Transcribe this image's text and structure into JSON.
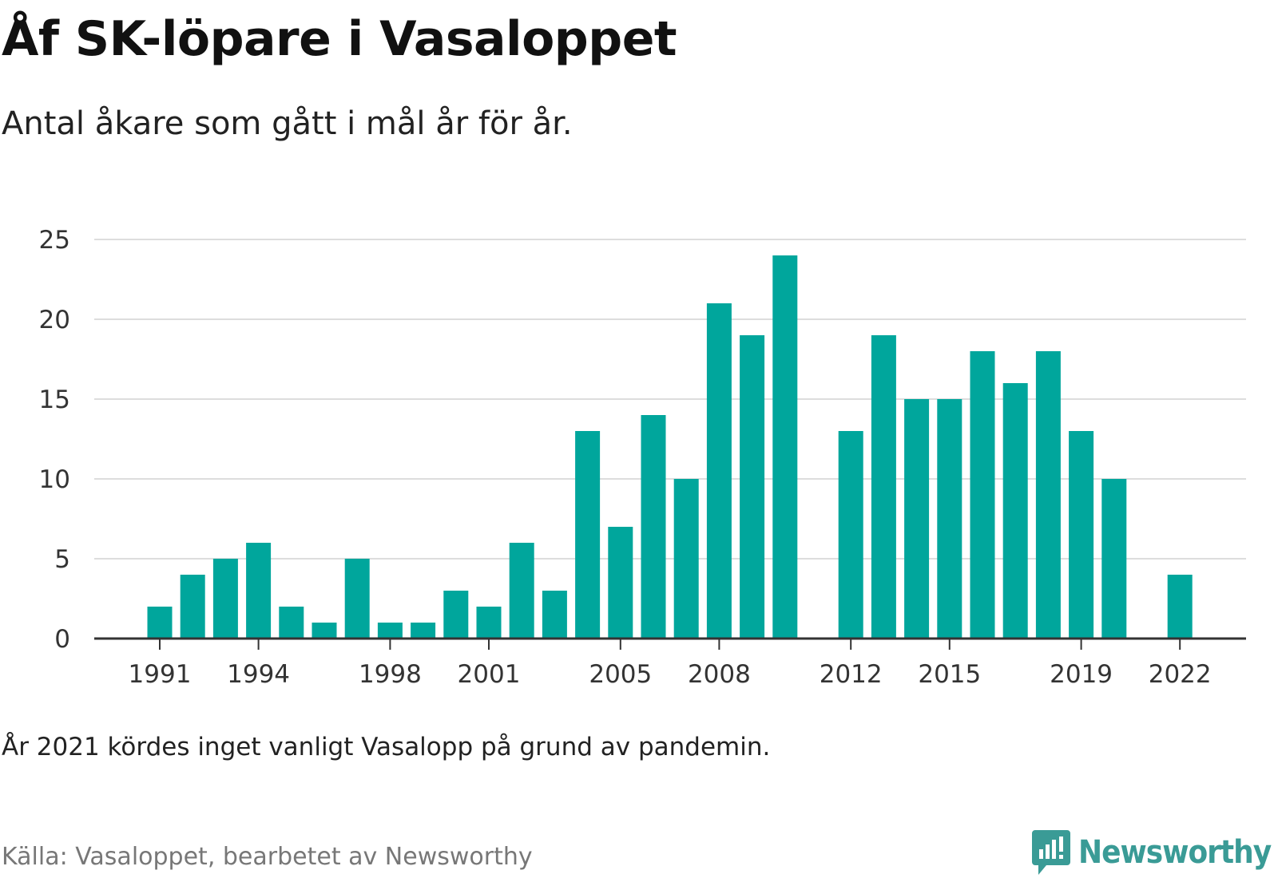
{
  "title": "Åf SK-löpare i Vasaloppet",
  "subtitle": "Antal åkare som gått i mål år för år.",
  "note": "År 2021 kördes inget vanligt Vasalopp på grund av pandemin.",
  "source": "Källa: Vasaloppet, bearbetet av Newsworthy",
  "logo_text": "Newsworthy",
  "colors": {
    "bar": "#00a69c",
    "grid": "#dddddd",
    "axis": "#333333",
    "logo": "#3a9b96"
  },
  "chart_data": {
    "type": "bar",
    "title": "Åf SK-löpare i Vasaloppet",
    "subtitle": "Antal åkare som gått i mål år för år.",
    "xlabel": "",
    "ylabel": "",
    "ylim": [
      0,
      25
    ],
    "yticks": [
      0,
      5,
      10,
      15,
      20,
      25
    ],
    "xtick_labels": [
      "1991",
      "1994",
      "1998",
      "2001",
      "2005",
      "2008",
      "2012",
      "2015",
      "2019",
      "2022"
    ],
    "categories": [
      1991,
      1992,
      1993,
      1994,
      1995,
      1996,
      1997,
      1998,
      1999,
      2000,
      2001,
      2002,
      2003,
      2004,
      2005,
      2006,
      2007,
      2008,
      2009,
      2010,
      2011,
      2012,
      2013,
      2014,
      2015,
      2016,
      2017,
      2018,
      2019,
      2020,
      2021,
      2022
    ],
    "values": [
      2,
      4,
      5,
      6,
      2,
      1,
      5,
      1,
      1,
      3,
      2,
      6,
      3,
      13,
      7,
      14,
      10,
      21,
      19,
      24,
      null,
      13,
      19,
      15,
      15,
      18,
      16,
      18,
      13,
      10,
      null,
      4
    ],
    "grid": true,
    "legend": "none"
  }
}
